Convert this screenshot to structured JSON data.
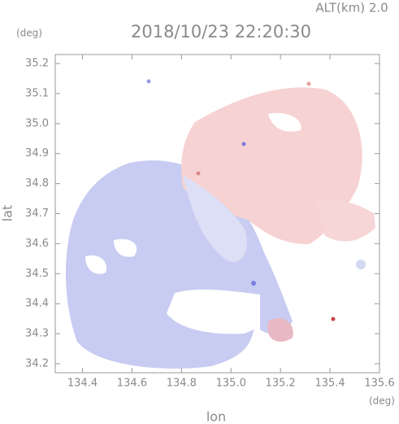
{
  "chart_data": {
    "type": "radar-map",
    "title": "2018/10/23 22:20:30",
    "altitude_label": "ALT(km) 2.0",
    "y_unit": "(deg)",
    "x_unit": "(deg)",
    "x_label": "lon",
    "y_label": "lat",
    "xlim": [
      134.29,
      135.6
    ],
    "ylim": [
      34.17,
      35.23
    ],
    "xticks": [
      134.4,
      134.6,
      134.8,
      {
        "value": 135,
        "label": "135.0"
      },
      135.2,
      135.4,
      135.6
    ],
    "yticks": [
      34.2,
      34.3,
      34.4,
      34.5,
      34.6,
      34.7,
      34.8,
      34.9,
      {
        "value": 35,
        "label": "35.0"
      },
      35.1,
      35.2
    ]
  }
}
